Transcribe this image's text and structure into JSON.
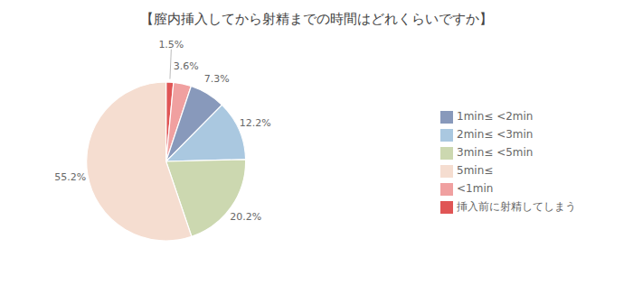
{
  "chart_data": {
    "type": "pie",
    "title": "【膣内挿入してから射精までの時間はどれくらいですか】",
    "categories": [
      "挿入前に射精してしまう",
      "<1min",
      "1min≤ <2min",
      "2min≤ <3min",
      "3min≤ <5min",
      "5min≤"
    ],
    "values": [
      1.5,
      3.6,
      7.3,
      12.2,
      20.2,
      55.2
    ],
    "value_labels": [
      "1.5%",
      "3.6%",
      "7.3%",
      "12.2%",
      "20.2%",
      "55.2%"
    ],
    "colors": [
      "#e05555",
      "#f0a0a0",
      "#8899bb",
      "#aac8e0",
      "#ccd8b0",
      "#f5ddd0"
    ],
    "data_labels": true,
    "legend": "right"
  }
}
